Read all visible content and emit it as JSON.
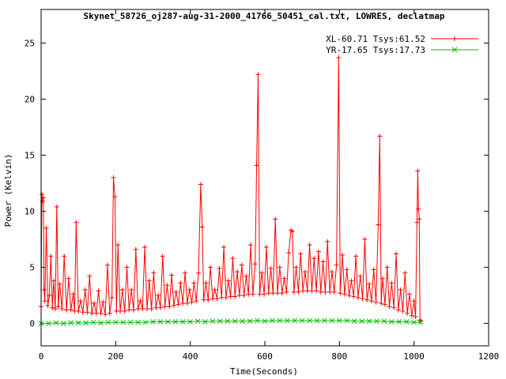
{
  "chart_data": {
    "type": "line",
    "title": "Skynet_58726_oj287-aug-31-2000_41766_50451_cal.txt, LOWRES, declatmap",
    "xlabel": "Time(Seconds)",
    "ylabel": "Power (Kelvin)",
    "xlim": [
      0,
      1200
    ],
    "ylim": [
      -2,
      28
    ],
    "xticks": [
      0,
      200,
      400,
      600,
      800,
      1000,
      1200
    ],
    "yticks": [
      0,
      5,
      10,
      15,
      20,
      25
    ],
    "grid": false,
    "legend_position": "top-right",
    "series": [
      {
        "name": "XL-60.71 Tsys:61.52",
        "color": "#ff0000",
        "marker": "plus",
        "points": [
          [
            0,
            1.5
          ],
          [
            2,
            11.5
          ],
          [
            4,
            10.9
          ],
          [
            6,
            11.2
          ],
          [
            8,
            3.0
          ],
          [
            10,
            2.0
          ],
          [
            14,
            8.5
          ],
          [
            18,
            1.6
          ],
          [
            22,
            2.5
          ],
          [
            26,
            6.0
          ],
          [
            30,
            1.4
          ],
          [
            34,
            3.8
          ],
          [
            38,
            1.3
          ],
          [
            42,
            10.4
          ],
          [
            46,
            1.5
          ],
          [
            50,
            3.5
          ],
          [
            56,
            1.3
          ],
          [
            62,
            6.0
          ],
          [
            68,
            1.2
          ],
          [
            74,
            4.0
          ],
          [
            80,
            1.2
          ],
          [
            86,
            2.6
          ],
          [
            90,
            1.1
          ],
          [
            94,
            9.0
          ],
          [
            100,
            1.1
          ],
          [
            106,
            2.0
          ],
          [
            112,
            1.0
          ],
          [
            118,
            3.0
          ],
          [
            124,
            1.0
          ],
          [
            130,
            4.2
          ],
          [
            136,
            0.9
          ],
          [
            142,
            1.8
          ],
          [
            148,
            0.9
          ],
          [
            154,
            2.9
          ],
          [
            160,
            0.9
          ],
          [
            166,
            1.9
          ],
          [
            172,
            0.8
          ],
          [
            178,
            5.2
          ],
          [
            184,
            0.9
          ],
          [
            190,
            2.3
          ],
          [
            194,
            13.0
          ],
          [
            198,
            11.3
          ],
          [
            202,
            1.1
          ],
          [
            206,
            7.0
          ],
          [
            212,
            1.1
          ],
          [
            218,
            3.0
          ],
          [
            224,
            1.1
          ],
          [
            230,
            5.0
          ],
          [
            236,
            1.2
          ],
          [
            242,
            3.0
          ],
          [
            248,
            1.2
          ],
          [
            254,
            6.6
          ],
          [
            260,
            1.3
          ],
          [
            266,
            2.0
          ],
          [
            272,
            1.3
          ],
          [
            278,
            6.8
          ],
          [
            284,
            1.3
          ],
          [
            290,
            3.8
          ],
          [
            296,
            1.3
          ],
          [
            302,
            4.5
          ],
          [
            308,
            1.4
          ],
          [
            314,
            2.5
          ],
          [
            320,
            1.4
          ],
          [
            326,
            6.0
          ],
          [
            332,
            1.5
          ],
          [
            338,
            3.4
          ],
          [
            344,
            1.5
          ],
          [
            350,
            4.3
          ],
          [
            356,
            1.6
          ],
          [
            362,
            2.8
          ],
          [
            368,
            1.7
          ],
          [
            374,
            3.6
          ],
          [
            380,
            1.8
          ],
          [
            386,
            4.5
          ],
          [
            392,
            1.8
          ],
          [
            398,
            3.0
          ],
          [
            404,
            1.9
          ],
          [
            410,
            3.6
          ],
          [
            416,
            2.0
          ],
          [
            422,
            4.5
          ],
          [
            428,
            12.4
          ],
          [
            432,
            8.6
          ],
          [
            436,
            2.1
          ],
          [
            442,
            3.6
          ],
          [
            448,
            2.1
          ],
          [
            454,
            5.0
          ],
          [
            460,
            2.2
          ],
          [
            466,
            3.0
          ],
          [
            472,
            2.2
          ],
          [
            478,
            4.9
          ],
          [
            484,
            2.3
          ],
          [
            490,
            6.8
          ],
          [
            496,
            2.3
          ],
          [
            502,
            3.8
          ],
          [
            508,
            2.4
          ],
          [
            514,
            5.8
          ],
          [
            520,
            2.4
          ],
          [
            526,
            4.6
          ],
          [
            532,
            2.5
          ],
          [
            538,
            5.2
          ],
          [
            544,
            2.5
          ],
          [
            550,
            4.2
          ],
          [
            556,
            2.6
          ],
          [
            562,
            7.0
          ],
          [
            568,
            2.6
          ],
          [
            574,
            5.3
          ],
          [
            578,
            14.1
          ],
          [
            582,
            22.2
          ],
          [
            586,
            2.6
          ],
          [
            592,
            4.5
          ],
          [
            598,
            2.6
          ],
          [
            604,
            6.8
          ],
          [
            610,
            2.7
          ],
          [
            616,
            4.9
          ],
          [
            622,
            2.7
          ],
          [
            628,
            9.3
          ],
          [
            634,
            2.7
          ],
          [
            640,
            5.0
          ],
          [
            646,
            2.7
          ],
          [
            652,
            4.0
          ],
          [
            658,
            2.8
          ],
          [
            664,
            6.3
          ],
          [
            670,
            8.3
          ],
          [
            674,
            8.2
          ],
          [
            678,
            2.8
          ],
          [
            684,
            5.0
          ],
          [
            690,
            2.8
          ],
          [
            696,
            6.2
          ],
          [
            702,
            2.9
          ],
          [
            708,
            4.6
          ],
          [
            714,
            2.9
          ],
          [
            720,
            7.0
          ],
          [
            726,
            2.9
          ],
          [
            732,
            5.8
          ],
          [
            738,
            2.9
          ],
          [
            744,
            6.4
          ],
          [
            750,
            2.8
          ],
          [
            756,
            5.5
          ],
          [
            762,
            2.8
          ],
          [
            768,
            7.3
          ],
          [
            774,
            2.8
          ],
          [
            780,
            4.6
          ],
          [
            786,
            2.8
          ],
          [
            792,
            5.2
          ],
          [
            798,
            23.7
          ],
          [
            802,
            2.7
          ],
          [
            808,
            6.1
          ],
          [
            814,
            2.6
          ],
          [
            820,
            4.8
          ],
          [
            826,
            2.5
          ],
          [
            832,
            3.8
          ],
          [
            838,
            2.4
          ],
          [
            844,
            6.0
          ],
          [
            850,
            2.3
          ],
          [
            856,
            4.2
          ],
          [
            862,
            2.2
          ],
          [
            868,
            7.5
          ],
          [
            874,
            2.1
          ],
          [
            880,
            3.5
          ],
          [
            886,
            2.0
          ],
          [
            892,
            4.8
          ],
          [
            898,
            1.9
          ],
          [
            904,
            8.8
          ],
          [
            908,
            16.7
          ],
          [
            912,
            1.8
          ],
          [
            916,
            4.0
          ],
          [
            922,
            1.7
          ],
          [
            928,
            5.0
          ],
          [
            934,
            1.5
          ],
          [
            940,
            3.6
          ],
          [
            946,
            1.4
          ],
          [
            952,
            6.2
          ],
          [
            958,
            1.2
          ],
          [
            964,
            3.0
          ],
          [
            970,
            1.1
          ],
          [
            976,
            4.5
          ],
          [
            982,
            0.9
          ],
          [
            988,
            2.6
          ],
          [
            994,
            0.7
          ],
          [
            1000,
            2.0
          ],
          [
            1004,
            0.6
          ],
          [
            1008,
            9.0
          ],
          [
            1010,
            13.6
          ],
          [
            1012,
            10.2
          ],
          [
            1014,
            9.3
          ],
          [
            1016,
            0.3
          ],
          [
            1018,
            0.2
          ]
        ]
      },
      {
        "name": "YR-17.65 Tsys:17.73",
        "color": "#00c000",
        "marker": "cross",
        "points": [
          [
            0,
            0.0
          ],
          [
            20,
            0.0
          ],
          [
            40,
            0.05
          ],
          [
            60,
            0.0
          ],
          [
            80,
            0.05
          ],
          [
            100,
            0.05
          ],
          [
            120,
            0.05
          ],
          [
            140,
            0.1
          ],
          [
            160,
            0.05
          ],
          [
            180,
            0.1
          ],
          [
            200,
            0.1
          ],
          [
            220,
            0.1
          ],
          [
            240,
            0.1
          ],
          [
            260,
            0.1
          ],
          [
            280,
            0.1
          ],
          [
            300,
            0.15
          ],
          [
            320,
            0.15
          ],
          [
            340,
            0.15
          ],
          [
            360,
            0.15
          ],
          [
            380,
            0.15
          ],
          [
            400,
            0.15
          ],
          [
            420,
            0.2
          ],
          [
            440,
            0.15
          ],
          [
            460,
            0.2
          ],
          [
            480,
            0.2
          ],
          [
            500,
            0.2
          ],
          [
            520,
            0.2
          ],
          [
            540,
            0.2
          ],
          [
            560,
            0.2
          ],
          [
            580,
            0.25
          ],
          [
            600,
            0.2
          ],
          [
            620,
            0.25
          ],
          [
            640,
            0.25
          ],
          [
            660,
            0.25
          ],
          [
            680,
            0.25
          ],
          [
            700,
            0.25
          ],
          [
            720,
            0.25
          ],
          [
            740,
            0.25
          ],
          [
            760,
            0.25
          ],
          [
            780,
            0.25
          ],
          [
            800,
            0.25
          ],
          [
            820,
            0.25
          ],
          [
            840,
            0.2
          ],
          [
            860,
            0.2
          ],
          [
            880,
            0.2
          ],
          [
            900,
            0.2
          ],
          [
            920,
            0.2
          ],
          [
            940,
            0.15
          ],
          [
            960,
            0.15
          ],
          [
            980,
            0.15
          ],
          [
            1000,
            0.1
          ],
          [
            1018,
            0.1
          ]
        ]
      }
    ]
  }
}
